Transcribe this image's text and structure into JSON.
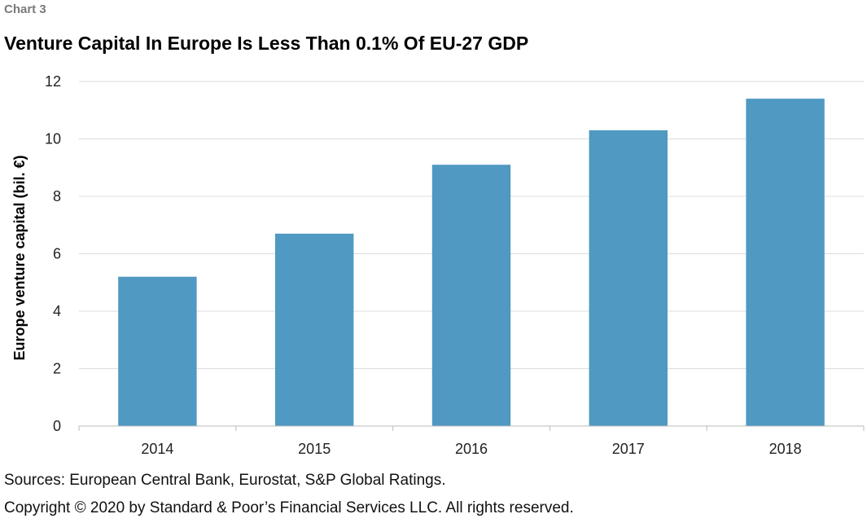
{
  "header": {
    "chart_label": "Chart 3",
    "title": "Venture Capital In Europe Is Less Than 0.1% Of EU-27 GDP"
  },
  "footer": {
    "sources": "Sources: European Central Bank, Eurostat, S&P Global Ratings.",
    "copyright": "Copyright © 2020 by Standard & Poor’s Financial Services LLC. All rights reserved."
  },
  "chart_data": {
    "type": "bar",
    "title": "Venture Capital In Europe Is Less Than 0.1% Of EU-27 GDP",
    "xlabel": "",
    "ylabel": "Europe venture capital (bil. €)",
    "categories": [
      "2014",
      "2015",
      "2016",
      "2017",
      "2018"
    ],
    "values": [
      5.2,
      6.7,
      9.1,
      10.3,
      11.4
    ],
    "ylim": [
      0,
      12
    ],
    "yticks": [
      0,
      2,
      4,
      6,
      8,
      10,
      12
    ],
    "grid": true,
    "legend": "none",
    "bar_color": "#4f99c2",
    "grid_color": "#dddddd",
    "axis_color": "#bbbbbb"
  }
}
